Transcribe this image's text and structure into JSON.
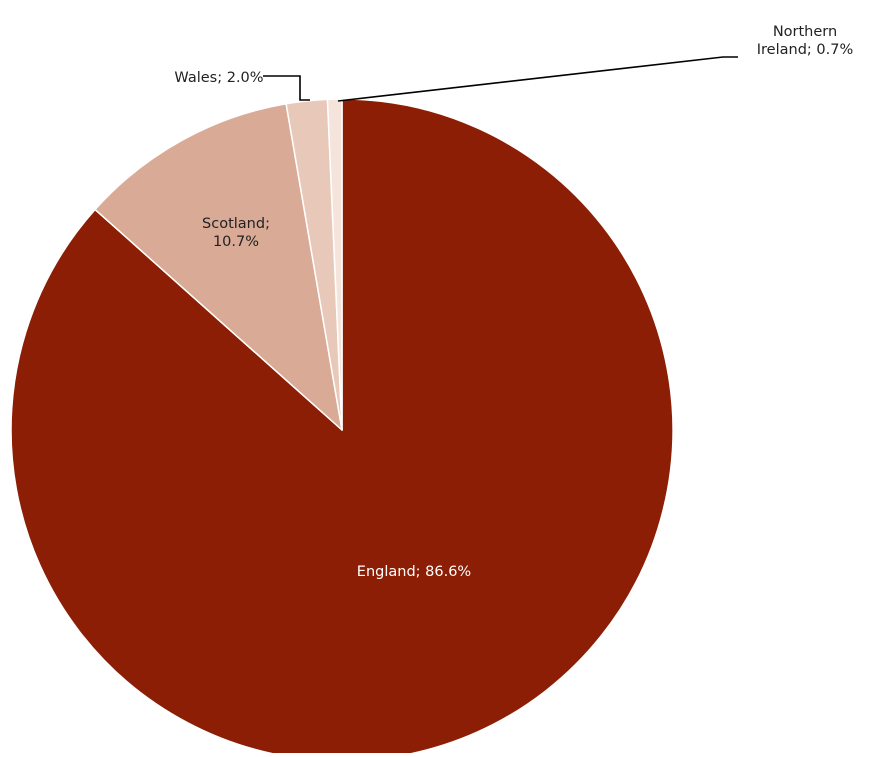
{
  "chart_data": {
    "type": "pie",
    "start": "top",
    "direction": "clockwise",
    "slices": [
      {
        "name": "England",
        "value": 86.6,
        "label_lines": [
          "England; 86.6%"
        ],
        "color": "#8b1e04",
        "label_color": "#ffffff",
        "leader_line": false
      },
      {
        "name": "Scotland",
        "value": 10.7,
        "label_lines": [
          "Scotland;",
          "10.7%"
        ],
        "color": "#d9aa96",
        "label_color": "#222222",
        "leader_line": false
      },
      {
        "name": "Wales",
        "value": 2.0,
        "label_lines": [
          "Wales; 2.0%"
        ],
        "color": "#e8c8b8",
        "label_color": "#222222",
        "leader_line": true
      },
      {
        "name": "Northern Ireland",
        "value": 0.7,
        "label_lines": [
          "Northern",
          "Ireland; 0.7%"
        ],
        "color": "#f4e4dc",
        "label_color": "#222222",
        "leader_line": true
      }
    ],
    "title": "",
    "legend": "none"
  }
}
